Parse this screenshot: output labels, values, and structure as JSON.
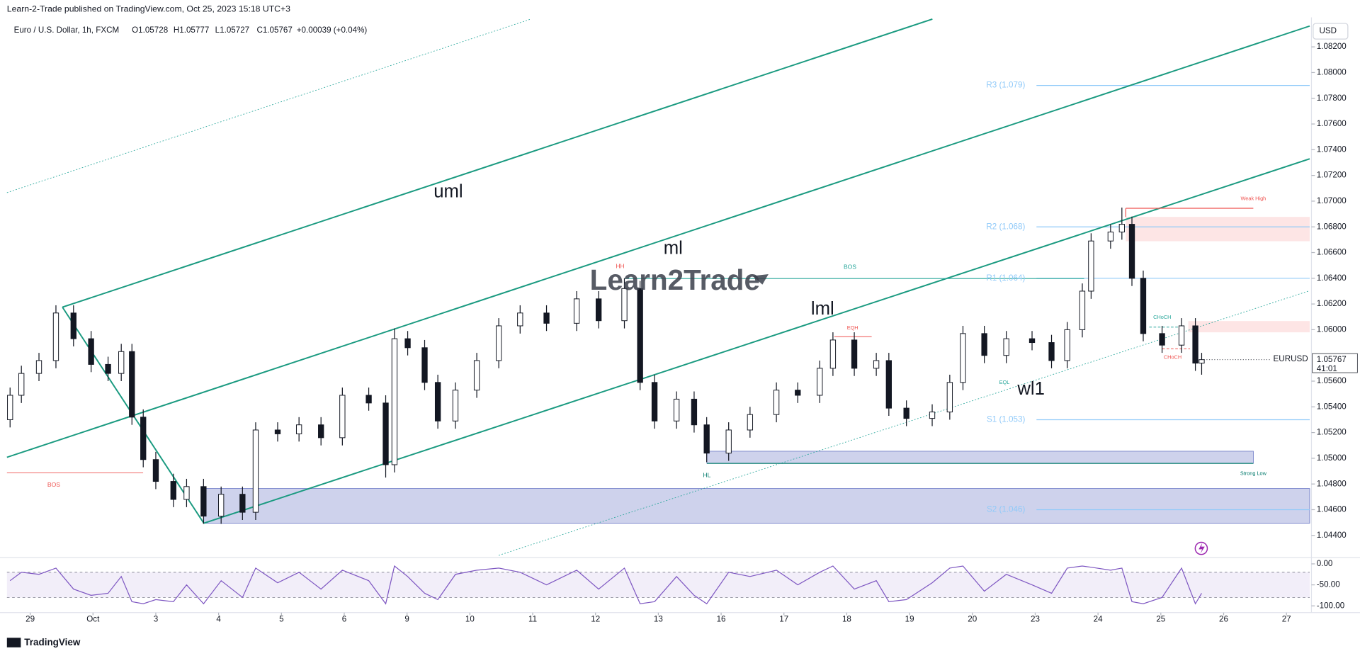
{
  "header": {
    "published": "Learn-2-Trade published on TradingView.com, Oct 25, 2023 15:18 UTC+3",
    "symbol": "Euro / U.S. Dollar, 1h, FXCM",
    "ohlc": [
      "O1.05728",
      "H1.05777",
      "L1.05727",
      "C1.05767",
      "+0.00039 (+0.04%)"
    ],
    "currency": "USD"
  },
  "chart_data": [
    {
      "type": "candlestick",
      "x": [
        -0.32,
        -0.14,
        0.14,
        0.41,
        0.69,
        0.97,
        1.24,
        1.45,
        1.62,
        1.8,
        2.0,
        2.28,
        2.49,
        2.76,
        3.04,
        3.38,
        3.59,
        3.94,
        4.28,
        4.63,
        4.97,
        5.39,
        5.66,
        5.8,
        6.01,
        6.28,
        6.49,
        6.77,
        7.11,
        7.46,
        7.8,
        8.22,
        8.7,
        9.05,
        9.46,
        9.71,
        9.94,
        10.29,
        10.57,
        10.77,
        11.12,
        11.46,
        11.88,
        12.22,
        12.57,
        12.78,
        13.12,
        13.47,
        13.67,
        13.95,
        14.36,
        14.64,
        14.85,
        15.19,
        15.54,
        15.95,
        16.26,
        16.51,
        16.75,
        16.89,
        17.2,
        17.38,
        17.54,
        17.72,
        18.02,
        18.33,
        18.55,
        18.65
      ],
      "open": [
        1.053,
        1.0549,
        1.0566,
        1.0576,
        1.0613,
        1.0593,
        1.0573,
        1.0566,
        1.0583,
        1.0532,
        1.0499,
        1.0482,
        1.0468,
        1.0478,
        1.0455,
        1.0472,
        1.0458,
        1.0522,
        1.0519,
        1.0526,
        1.0516,
        1.0549,
        1.0543,
        1.0495,
        1.0593,
        1.0586,
        1.0559,
        1.0529,
        1.0553,
        1.0576,
        1.0603,
        1.0613,
        1.0605,
        1.0624,
        1.0607,
        1.0632,
        1.0559,
        1.0529,
        1.0546,
        1.0526,
        1.0504,
        1.0522,
        1.0534,
        1.0553,
        1.0549,
        1.057,
        1.0592,
        1.057,
        1.0576,
        1.0539,
        1.0531,
        1.0536,
        1.0559,
        1.0597,
        1.058,
        1.0593,
        1.059,
        1.0576,
        1.06,
        1.063,
        1.0669,
        1.0676,
        1.0682,
        1.064,
        1.0597,
        1.0588,
        1.0603,
        1.0574
      ],
      "high": [
        1.0555,
        1.0572,
        1.0582,
        1.0619,
        1.0619,
        1.0599,
        1.0579,
        1.0589,
        1.0589,
        1.0538,
        1.0505,
        1.0488,
        1.0484,
        1.0484,
        1.0478,
        1.0478,
        1.0528,
        1.0528,
        1.0532,
        1.0532,
        1.0555,
        1.0555,
        1.0549,
        1.0601,
        1.0599,
        1.0592,
        1.0565,
        1.0559,
        1.0582,
        1.0609,
        1.0619,
        1.0619,
        1.063,
        1.063,
        1.064,
        1.0638,
        1.0565,
        1.0552,
        1.0552,
        1.0532,
        1.0528,
        1.054,
        1.0559,
        1.0559,
        1.0576,
        1.0598,
        1.0598,
        1.0582,
        1.0582,
        1.0545,
        1.0542,
        1.0565,
        1.0603,
        1.0603,
        1.0599,
        1.0599,
        1.0596,
        1.0606,
        1.0636,
        1.0675,
        1.0682,
        1.0695,
        1.0688,
        1.0646,
        1.0603,
        1.0609,
        1.0609,
        1.0582
      ],
      "low": [
        1.0524,
        1.0543,
        1.056,
        1.057,
        1.0587,
        1.0567,
        1.056,
        1.056,
        1.0526,
        1.0493,
        1.0476,
        1.0462,
        1.0462,
        1.0449,
        1.0449,
        1.0452,
        1.0452,
        1.0513,
        1.0513,
        1.051,
        1.051,
        1.0537,
        1.0485,
        1.0489,
        1.058,
        1.0553,
        1.0523,
        1.0523,
        1.0547,
        1.057,
        1.0597,
        1.0599,
        1.0599,
        1.0601,
        1.0601,
        1.0553,
        1.0523,
        1.0523,
        1.052,
        1.0497,
        1.0498,
        1.0516,
        1.0528,
        1.0543,
        1.0543,
        1.0564,
        1.0564,
        1.0564,
        1.0533,
        1.0525,
        1.0525,
        1.053,
        1.0553,
        1.0574,
        1.0574,
        1.0584,
        1.057,
        1.057,
        1.0594,
        1.0624,
        1.0663,
        1.067,
        1.0634,
        1.0591,
        1.0582,
        1.0582,
        1.0568,
        1.0565
      ],
      "close": [
        1.0549,
        1.0566,
        1.0576,
        1.0613,
        1.0593,
        1.0573,
        1.0566,
        1.0583,
        1.0532,
        1.0499,
        1.0482,
        1.0468,
        1.0478,
        1.0455,
        1.0472,
        1.0458,
        1.0522,
        1.0519,
        1.0526,
        1.0516,
        1.0549,
        1.0543,
        1.0495,
        1.0593,
        1.0586,
        1.0559,
        1.0529,
        1.0553,
        1.0576,
        1.0603,
        1.0613,
        1.0605,
        1.0624,
        1.0607,
        1.0632,
        1.0559,
        1.0529,
        1.0546,
        1.0526,
        1.0504,
        1.0522,
        1.0534,
        1.0553,
        1.0549,
        1.057,
        1.0592,
        1.057,
        1.0576,
        1.0539,
        1.0531,
        1.0536,
        1.0559,
        1.0597,
        1.058,
        1.0593,
        1.059,
        1.0576,
        1.06,
        1.063,
        1.0669,
        1.0676,
        1.0682,
        1.064,
        1.0597,
        1.0588,
        1.0603,
        1.0574,
        1.05767
      ],
      "up_color": "#ffffff",
      "down_color": "#131722",
      "xlim": [
        -0.37,
        20.37
      ],
      "xticks": [
        {
          "value": 0,
          "label": "29"
        },
        {
          "value": 1,
          "label": "Oct"
        },
        {
          "value": 2,
          "label": "3"
        },
        {
          "value": 3,
          "label": "4"
        },
        {
          "value": 4,
          "label": "5"
        },
        {
          "value": 5,
          "label": "6"
        },
        {
          "value": 6,
          "label": "9"
        },
        {
          "value": 7,
          "label": "10"
        },
        {
          "value": 8,
          "label": "11"
        },
        {
          "value": 9,
          "label": "12"
        },
        {
          "value": 10,
          "label": "13"
        },
        {
          "value": 11,
          "label": "16"
        },
        {
          "value": 12,
          "label": "17"
        },
        {
          "value": 13,
          "label": "18"
        },
        {
          "value": 14,
          "label": "19"
        },
        {
          "value": 15,
          "label": "20"
        },
        {
          "value": 16,
          "label": "23"
        },
        {
          "value": 17,
          "label": "24"
        },
        {
          "value": 18,
          "label": "25"
        },
        {
          "value": 19,
          "label": "26"
        },
        {
          "value": 20,
          "label": "27"
        }
      ],
      "ylim": [
        1.04245,
        1.08416
      ],
      "yticks": [
        {
          "value": 1.044,
          "label": "1.04400"
        },
        {
          "value": 1.046,
          "label": "1.04600"
        },
        {
          "value": 1.048,
          "label": "1.04800"
        },
        {
          "value": 1.05,
          "label": "1.05000"
        },
        {
          "value": 1.052,
          "label": "1.05200"
        },
        {
          "value": 1.054,
          "label": "1.05400"
        },
        {
          "value": 1.056,
          "label": "1.05600"
        },
        {
          "value": 1.06,
          "label": "1.06000"
        },
        {
          "value": 1.062,
          "label": "1.06200"
        },
        {
          "value": 1.064,
          "label": "1.06400"
        },
        {
          "value": 1.066,
          "label": "1.06600"
        },
        {
          "value": 1.068,
          "label": "1.06800"
        },
        {
          "value": 1.07,
          "label": "1.07000"
        },
        {
          "value": 1.072,
          "label": "1.07200"
        },
        {
          "value": 1.074,
          "label": "1.07400"
        },
        {
          "value": 1.076,
          "label": "1.07600"
        },
        {
          "value": 1.078,
          "label": "1.07800"
        },
        {
          "value": 1.08,
          "label": "1.08000"
        },
        {
          "value": 1.082,
          "label": "1.08200"
        }
      ],
      "last_price": 1.05767,
      "countdown": "41:01",
      "symbol_label": "EURUSD",
      "pivots": [
        {
          "label": "R3 (1.079)",
          "value": 1.079
        },
        {
          "label": "R2 (1.068)",
          "value": 1.068
        },
        {
          "label": "R1 (1.064)",
          "value": 1.064
        },
        {
          "label": "S1 (1.053)",
          "value": 1.053
        },
        {
          "label": "S2 (1.046)",
          "value": 1.046
        }
      ],
      "pivot_color": "#90caf9",
      "annotations": [
        "uml",
        "ml",
        "lml",
        "wl1",
        "BOS",
        "BOS",
        "HH",
        "HL",
        "EQH",
        "EQL",
        "CHoCH",
        "CHoCH",
        "Weak High",
        "Strong Low",
        "Learn2Trade"
      ]
    },
    {
      "type": "line",
      "color": "#7e57c2",
      "values": [
        -40,
        -20,
        -25,
        -10,
        -60,
        -75,
        -70,
        -30,
        -90,
        -95,
        -85,
        -90,
        -50,
        -95,
        -40,
        -80,
        -10,
        -45,
        -20,
        -60,
        -15,
        -40,
        -95,
        -5,
        -30,
        -70,
        -85,
        -25,
        -15,
        -10,
        -20,
        -50,
        -15,
        -60,
        -10,
        -95,
        -90,
        -30,
        -75,
        -95,
        -20,
        -30,
        -15,
        -50,
        -20,
        -5,
        -60,
        -40,
        -90,
        -85,
        -45,
        -10,
        -5,
        -65,
        -25,
        -50,
        -70,
        -10,
        -5,
        -8,
        -15,
        -10,
        -90,
        -95,
        -80,
        -10,
        -95,
        -70
      ],
      "ylim": [
        -114,
        10
      ],
      "yticks": [
        {
          "value": 0,
          "label": "0.00"
        },
        {
          "value": -50,
          "label": "-50.00"
        },
        {
          "value": -100,
          "label": "-100.00"
        }
      ],
      "levels": [
        -20,
        -80
      ]
    }
  ],
  "footer": "TradingView"
}
